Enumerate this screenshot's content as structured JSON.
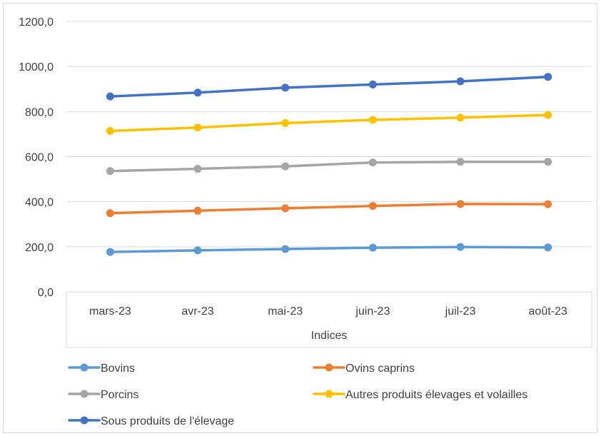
{
  "chart_data": {
    "type": "line",
    "title": "",
    "xlabel": "Indices",
    "ylabel": "",
    "ylim": [
      0,
      1200
    ],
    "yticks": [
      "0,0",
      "200,0",
      "400,0",
      "600,0",
      "800,0",
      "1000,0",
      "1200,0"
    ],
    "ytick_values": [
      0,
      200,
      400,
      600,
      800,
      1000,
      1200
    ],
    "categories": [
      "mars-23",
      "avr-23",
      "mai-23",
      "juin-23",
      "juil-23",
      "août-23"
    ],
    "grid": "horizontal",
    "legend_position": "bottom",
    "series": [
      {
        "name": "Bovins",
        "color": "#5b9bd5",
        "values": [
          177,
          184,
          190,
          196,
          199,
          197
        ]
      },
      {
        "name": "Ovins caprins",
        "color": "#ed7d31",
        "values": [
          349,
          360,
          371,
          381,
          390,
          389
        ]
      },
      {
        "name": "Porcins",
        "color": "#a5a5a5",
        "values": [
          536,
          546,
          557,
          574,
          577,
          577
        ]
      },
      {
        "name": "Autres produits élevages et volailles",
        "color": "#ffc000",
        "values": [
          714,
          729,
          749,
          763,
          773,
          785
        ]
      },
      {
        "name": "Sous produits de l'élevage",
        "color": "#4472c4",
        "values": [
          867,
          884,
          906,
          920,
          934,
          954
        ]
      }
    ]
  }
}
